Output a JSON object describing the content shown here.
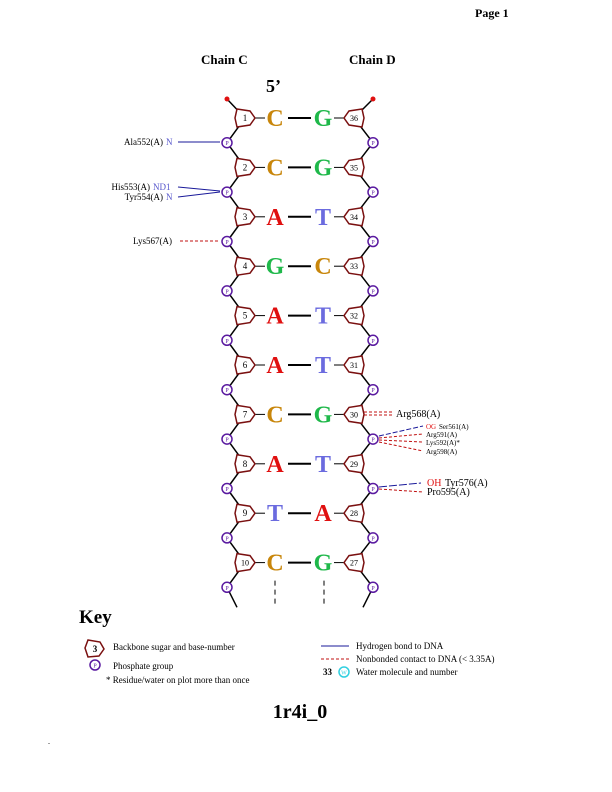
{
  "page_label": "Page 1",
  "chain_left": "Chain C",
  "chain_right": "Chain D",
  "five_prime": "5’",
  "phosphate_letter": "P",
  "colors": {
    "C": "#c8860b",
    "G": "#1fb84a",
    "A": "#e01010",
    "T": "#6b6bdf",
    "sugar": "#7a1010",
    "phosphate": "#5a1aa0",
    "hbond": "#1a1a9a",
    "nonbonded": "#c01010",
    "water": "#30d0e0"
  },
  "pairs": [
    {
      "left_num": "1",
      "left_base": "C",
      "right_base": "G",
      "right_num": "36"
    },
    {
      "left_num": "2",
      "left_base": "C",
      "right_base": "G",
      "right_num": "35"
    },
    {
      "left_num": "3",
      "left_base": "A",
      "right_base": "T",
      "right_num": "34"
    },
    {
      "left_num": "4",
      "left_base": "G",
      "right_base": "C",
      "right_num": "33"
    },
    {
      "left_num": "5",
      "left_base": "A",
      "right_base": "T",
      "right_num": "32"
    },
    {
      "left_num": "6",
      "left_base": "A",
      "right_base": "T",
      "right_num": "31"
    },
    {
      "left_num": "7",
      "left_base": "C",
      "right_base": "G",
      "right_num": "30"
    },
    {
      "left_num": "8",
      "left_base": "A",
      "right_base": "T",
      "right_num": "29"
    },
    {
      "left_num": "9",
      "left_base": "T",
      "right_base": "A",
      "right_num": "28"
    },
    {
      "left_num": "10",
      "left_base": "C",
      "right_base": "G",
      "right_num": "27"
    }
  ],
  "interactions": {
    "ala552": {
      "residue": "Ala552(A)",
      "atom": "N",
      "type": "hbond"
    },
    "his553": {
      "residue": "His553(A)",
      "atom": "ND1",
      "type": "hbond"
    },
    "tyr554": {
      "residue": "Tyr554(A)",
      "atom": "N",
      "type": "hbond"
    },
    "lys567": {
      "residue": "Lys567(A)",
      "type": "nonbonded"
    },
    "arg568": {
      "residue": "Arg568(A)",
      "type": "nonbonded"
    },
    "ser561": {
      "residue": "Ser561(A)",
      "atom": "OG",
      "type": "hbond"
    },
    "arg591": {
      "residue": "Arg591(A)",
      "type": "nonbonded"
    },
    "lys592": {
      "residue": "Lys592(A)*",
      "type": "nonbonded"
    },
    "arg598": {
      "residue": "Arg598(A)",
      "type": "nonbonded"
    },
    "tyr576": {
      "residue": "Tyr576(A)",
      "atom": "OH",
      "type": "hbond"
    },
    "pro595": {
      "residue": "Pro595(A)",
      "type": "nonbonded"
    }
  },
  "key": {
    "title": "Key",
    "sugar_example": "3",
    "sugar_label": "Backbone sugar and base-number",
    "phosphate_label": "Phosphate group",
    "repeat_note": "* Residue/water on plot more than once",
    "hbond_label": "Hydrogen bond to DNA",
    "nonbonded_label": "Nonbonded contact to DNA (< 3.35A)",
    "water_number": "33",
    "water_letter": "W",
    "water_label": "Water molecule and number"
  },
  "structure_id": "1r4i_0"
}
